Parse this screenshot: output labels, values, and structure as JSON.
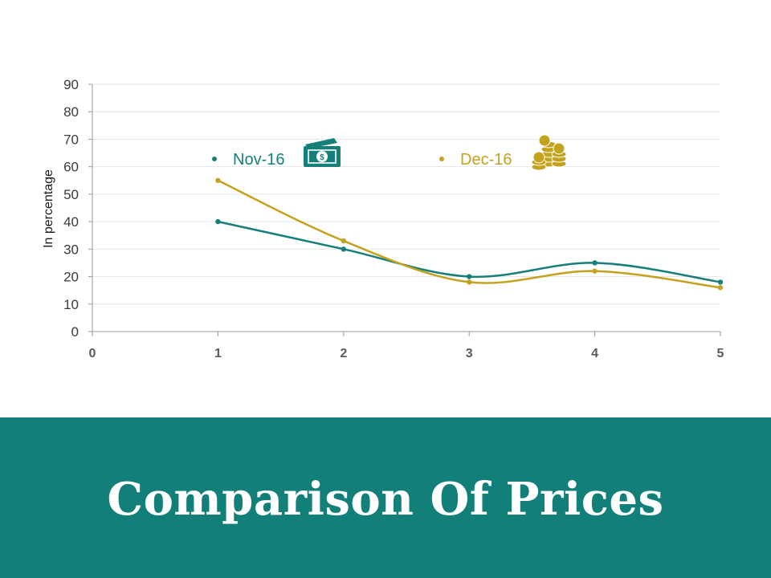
{
  "title": "Comparison Of Prices",
  "colors": {
    "footer_bg": "#127f79",
    "nov": "#167f7a",
    "dec": "#c3a21d"
  },
  "chart_data": {
    "type": "line",
    "ylabel": "In percentage",
    "xlabel": "",
    "xlim": [
      0,
      5
    ],
    "ylim": [
      0,
      90
    ],
    "x_ticks": [
      0,
      1,
      2,
      3,
      4,
      5
    ],
    "y_ticks": [
      0,
      10,
      20,
      30,
      40,
      50,
      60,
      70,
      80,
      90
    ],
    "grid": true,
    "legend_position": "top",
    "series": [
      {
        "name": "Nov-16",
        "color": "#167f7a",
        "icon": "money-bill-icon",
        "x": [
          1,
          2,
          3,
          4,
          5
        ],
        "y": [
          40,
          30,
          20,
          25,
          18
        ]
      },
      {
        "name": "Dec-16",
        "color": "#c3a21d",
        "icon": "coin-stack-icon",
        "x": [
          1,
          2,
          3,
          4,
          5
        ],
        "y": [
          55,
          33,
          18,
          22,
          16
        ]
      }
    ]
  }
}
